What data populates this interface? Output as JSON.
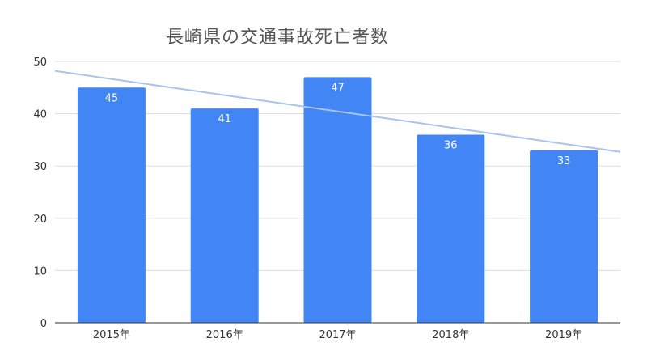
{
  "chart_data": {
    "type": "bar",
    "title": "長崎県の交通事故死亡者数",
    "categories": [
      "2015年",
      "2016年",
      "2017年",
      "2018年",
      "2019年"
    ],
    "values": [
      45,
      41,
      47,
      36,
      33
    ],
    "ylim": [
      0,
      50
    ],
    "yticks": [
      0,
      10,
      20,
      30,
      40,
      50
    ],
    "grid": true,
    "data_labels": true,
    "trendline": {
      "type": "linear",
      "start_value": 48.2,
      "end_value": 32.7
    },
    "colors": {
      "bar": "#4285f4",
      "trendline": "#a9c4ee",
      "grid": "#dddddd",
      "axis": "#333333"
    }
  }
}
